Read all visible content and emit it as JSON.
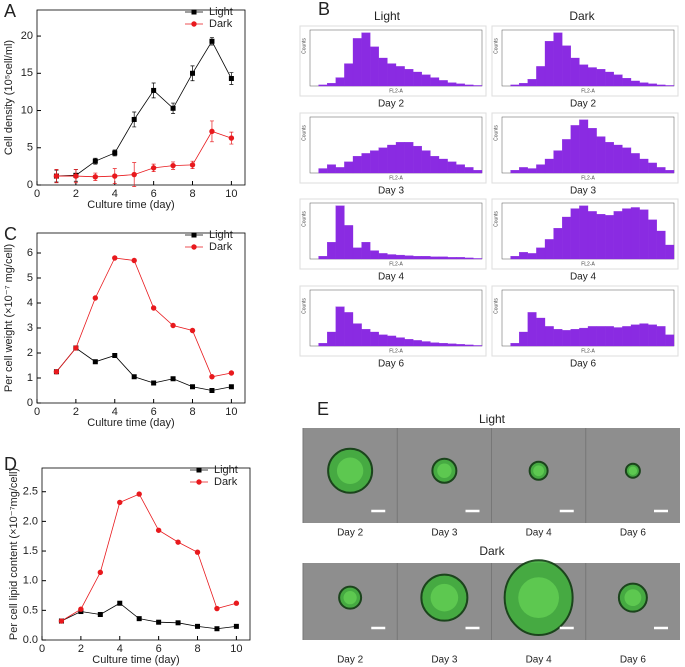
{
  "chart_data": [
    {
      "type": "line",
      "panel": "A",
      "xlabel": "Culture time (day)",
      "ylabel": "Cell density (10⁵cell/ml)",
      "x": [
        1,
        2,
        3,
        4,
        5,
        6,
        7,
        8,
        9,
        10
      ],
      "xlim": [
        0,
        10.7
      ],
      "xticks": [
        0,
        2,
        4,
        6,
        8,
        10
      ],
      "ylim": [
        0,
        23.5
      ],
      "yticks": [
        0,
        5,
        10,
        15,
        20
      ],
      "legend": "upper-right",
      "series": [
        {
          "name": "Light",
          "color": "#000000",
          "marker": "square",
          "values": [
            1.2,
            1.3,
            3.2,
            4.3,
            8.8,
            12.7,
            10.3,
            15.0,
            19.3,
            14.3
          ],
          "errors": [
            0.8,
            0.8,
            0.4,
            0.4,
            1.0,
            1.0,
            0.7,
            1.0,
            0.5,
            0.8
          ]
        },
        {
          "name": "Dark",
          "color": "#e8191d",
          "marker": "circle",
          "values": [
            1.2,
            1.2,
            1.1,
            1.2,
            1.4,
            2.3,
            2.6,
            2.7,
            7.2,
            6.3
          ],
          "errors": [
            0.9,
            0.9,
            0.5,
            1.0,
            1.6,
            0.5,
            0.5,
            0.5,
            1.4,
            0.8
          ]
        }
      ]
    },
    {
      "type": "line",
      "panel": "C",
      "xlabel": "Culture time (day)",
      "ylabel": "Per cell weight (×10⁻⁷ mg/cell)",
      "x": [
        1,
        2,
        3,
        4,
        5,
        6,
        7,
        8,
        9,
        10
      ],
      "xlim": [
        0,
        10.7
      ],
      "xticks": [
        0,
        2,
        4,
        6,
        8,
        10
      ],
      "ylim": [
        0,
        6.8
      ],
      "yticks": [
        0,
        1,
        2,
        3,
        4,
        5,
        6
      ],
      "legend": "upper-right",
      "series": [
        {
          "name": "Light",
          "color": "#000000",
          "marker": "square",
          "values": [
            1.25,
            2.2,
            1.65,
            1.9,
            1.05,
            0.8,
            0.97,
            0.65,
            0.5,
            0.65
          ]
        },
        {
          "name": "Dark",
          "color": "#e8191d",
          "marker": "circle",
          "values": [
            1.25,
            2.2,
            4.2,
            5.8,
            5.7,
            3.8,
            3.1,
            2.9,
            1.05,
            1.2
          ]
        }
      ]
    },
    {
      "type": "line",
      "panel": "D",
      "xlabel": "Culture time (day)",
      "ylabel": "Per cell lipid content (×10⁻⁷mg/cell)",
      "x": [
        1,
        2,
        3,
        4,
        5,
        6,
        7,
        8,
        9,
        10
      ],
      "xlim": [
        0,
        10.7
      ],
      "xticks": [
        0,
        2,
        4,
        6,
        8,
        10
      ],
      "ylim": [
        0,
        2.9
      ],
      "yticks": [
        {
          "value": 0,
          "label": "0.0"
        },
        0.5,
        {
          "value": 1,
          "label": "1.0"
        },
        1.5,
        {
          "value": 2,
          "label": "2.0"
        },
        2.5
      ],
      "legend": "upper-right",
      "series": [
        {
          "name": "Light",
          "color": "#000000",
          "marker": "square",
          "values": [
            0.32,
            0.48,
            0.43,
            0.62,
            0.36,
            0.3,
            0.29,
            0.23,
            0.19,
            0.23
          ]
        },
        {
          "name": "Dark",
          "color": "#e8191d",
          "marker": "circle",
          "values": [
            0.32,
            0.52,
            1.14,
            2.32,
            2.46,
            1.85,
            1.65,
            1.48,
            0.53,
            0.62
          ]
        }
      ]
    },
    {
      "type": "histogram",
      "title": "Day 2",
      "xlabel": "FL2-A",
      "ylabel": "Counts",
      "color": "#8a2be2",
      "xlim": [
        0,
        1000
      ],
      "ylim": [
        0,
        100
      ],
      "bins": [
        0,
        50,
        100,
        150,
        200,
        250,
        300,
        350,
        400,
        450,
        500,
        550,
        600,
        650,
        700,
        750,
        800,
        850,
        900,
        950,
        1000
      ],
      "values": [
        0,
        2,
        5,
        15,
        40,
        85,
        95,
        70,
        50,
        40,
        35,
        30,
        25,
        20,
        15,
        10,
        6,
        4,
        2,
        1
      ]
    },
    {
      "type": "histogram",
      "title": "Day 2",
      "xlabel": "FL2-A",
      "ylabel": "Counts",
      "color": "#8a2be2",
      "xlim": [
        0,
        1000
      ],
      "ylim": [
        0,
        100
      ],
      "bins": [
        0,
        50,
        100,
        150,
        200,
        250,
        300,
        350,
        400,
        450,
        500,
        550,
        600,
        650,
        700,
        750,
        800,
        850,
        900,
        950,
        1000
      ],
      "values": [
        0,
        2,
        5,
        12,
        35,
        80,
        95,
        72,
        50,
        38,
        33,
        30,
        25,
        20,
        14,
        9,
        6,
        4,
        2,
        1
      ]
    },
    {
      "type": "histogram",
      "title": "Day 3",
      "xlabel": "FL2-A",
      "ylabel": "Counts",
      "color": "#8a2be2",
      "xlim": [
        0,
        1000
      ],
      "ylim": [
        0,
        100
      ],
      "bins": [
        0,
        50,
        100,
        150,
        200,
        250,
        300,
        350,
        400,
        450,
        500,
        550,
        600,
        650,
        700,
        750,
        800,
        850,
        900,
        950,
        1000
      ],
      "values": [
        0,
        8,
        15,
        10,
        20,
        30,
        35,
        40,
        45,
        50,
        55,
        55,
        48,
        40,
        30,
        25,
        20,
        15,
        10,
        5
      ]
    },
    {
      "type": "histogram",
      "title": "Day 3",
      "xlabel": "FL2-A",
      "ylabel": "Counts",
      "color": "#8a2be2",
      "xlim": [
        0,
        1000
      ],
      "ylim": [
        0,
        100
      ],
      "bins": [
        0,
        50,
        100,
        150,
        200,
        250,
        300,
        350,
        400,
        450,
        500,
        550,
        600,
        650,
        700,
        750,
        800,
        850,
        900,
        950,
        1000
      ],
      "values": [
        0,
        5,
        10,
        8,
        15,
        25,
        40,
        60,
        85,
        95,
        80,
        65,
        55,
        50,
        45,
        35,
        25,
        18,
        10,
        5
      ]
    },
    {
      "type": "histogram",
      "title": "Day 4",
      "xlabel": "FL2-A",
      "ylabel": "Counts",
      "color": "#8a2be2",
      "xlim": [
        0,
        1000
      ],
      "ylim": [
        0,
        100
      ],
      "bins": [
        0,
        50,
        100,
        150,
        200,
        250,
        300,
        350,
        400,
        450,
        500,
        550,
        600,
        650,
        700,
        750,
        800,
        850,
        900,
        950,
        1000
      ],
      "values": [
        0,
        5,
        30,
        95,
        60,
        20,
        30,
        15,
        10,
        8,
        7,
        6,
        5,
        5,
        4,
        4,
        3,
        3,
        2,
        1
      ]
    },
    {
      "type": "histogram",
      "title": "Day 4",
      "xlabel": "FL2-A",
      "ylabel": "Counts",
      "color": "#8a2be2",
      "xlim": [
        0,
        1000
      ],
      "ylim": [
        0,
        100
      ],
      "bins": [
        0,
        50,
        100,
        150,
        200,
        250,
        300,
        350,
        400,
        450,
        500,
        550,
        600,
        650,
        700,
        750,
        800,
        850,
        900,
        950,
        1000
      ],
      "values": [
        0,
        5,
        12,
        10,
        20,
        35,
        55,
        75,
        90,
        95,
        85,
        80,
        78,
        85,
        90,
        92,
        88,
        70,
        50,
        25
      ]
    },
    {
      "type": "histogram",
      "title": "Day 6",
      "xlabel": "FL2-A",
      "ylabel": "Counts",
      "color": "#8a2be2",
      "xlim": [
        0,
        1000
      ],
      "ylim": [
        0,
        100
      ],
      "bins": [
        0,
        50,
        100,
        150,
        200,
        250,
        300,
        350,
        400,
        450,
        500,
        550,
        600,
        650,
        700,
        750,
        800,
        850,
        900,
        950,
        1000
      ],
      "values": [
        0,
        5,
        25,
        70,
        60,
        40,
        30,
        25,
        20,
        18,
        15,
        12,
        10,
        8,
        6,
        5,
        4,
        3,
        2,
        1
      ]
    },
    {
      "type": "histogram",
      "title": "Day 6",
      "xlabel": "FL2-A",
      "ylabel": "Counts",
      "color": "#8a2be2",
      "xlim": [
        0,
        1000
      ],
      "ylim": [
        0,
        100
      ],
      "bins": [
        0,
        50,
        100,
        150,
        200,
        250,
        300,
        350,
        400,
        450,
        500,
        550,
        600,
        650,
        700,
        750,
        800,
        850,
        900,
        950,
        1000
      ],
      "values": [
        0,
        5,
        25,
        60,
        50,
        35,
        30,
        28,
        30,
        32,
        35,
        35,
        35,
        33,
        35,
        38,
        40,
        38,
        35,
        20
      ]
    }
  ],
  "panel_b": {
    "label": "B",
    "columns": [
      "Light",
      "Dark"
    ]
  },
  "panel_e": {
    "label": "E",
    "groups": [
      {
        "title": "Light",
        "days": [
          "Day 2",
          "Day 3",
          "Day 4",
          "Day 6"
        ]
      },
      {
        "title": "Dark",
        "days": [
          "Day 2",
          "Day 3",
          "Day 4",
          "Day 6"
        ]
      }
    ]
  }
}
